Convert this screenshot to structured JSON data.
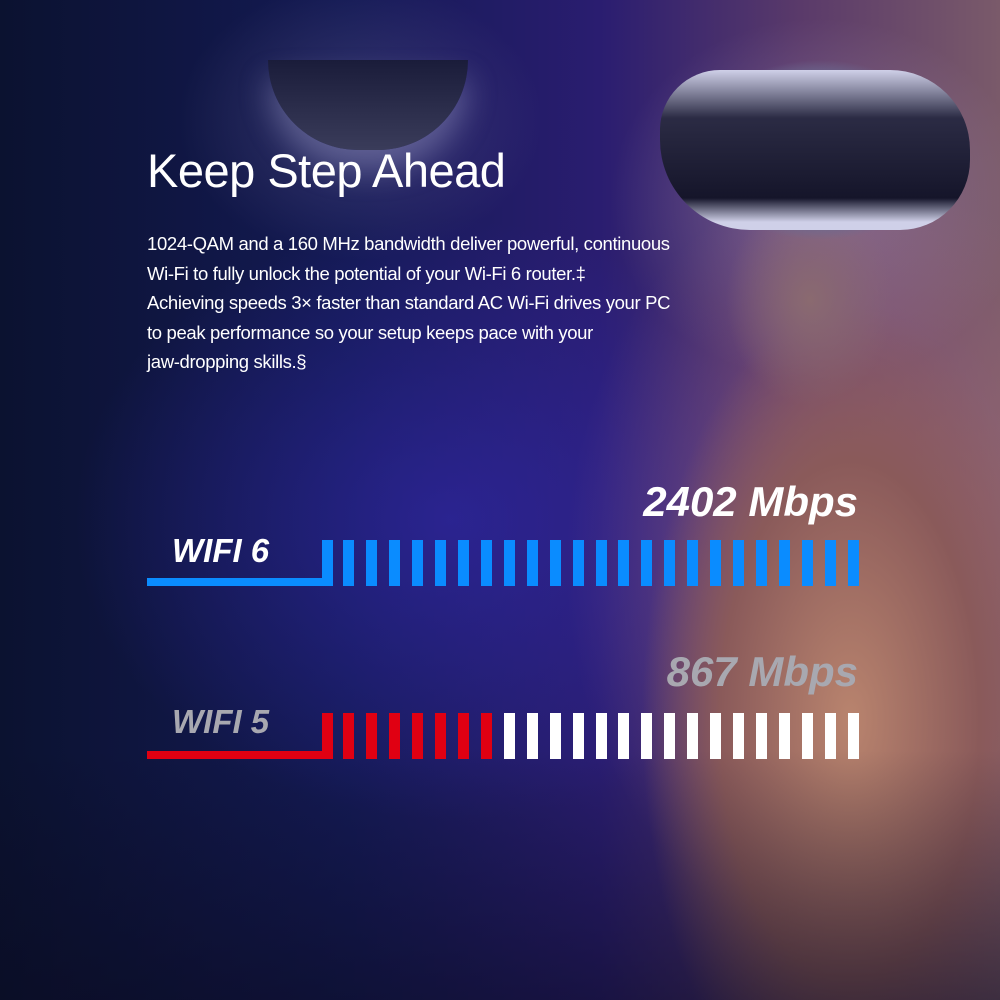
{
  "headline": "Keep Step Ahead",
  "description_lines": [
    "1024-QAM and a 160 MHz bandwidth deliver powerful, continuous",
    "Wi-Fi to fully unlock the potential of your Wi-Fi 6 router.‡",
    "Achieving speeds 3× faster than standard AC Wi-Fi drives your PC",
    "to peak performance so your setup keeps pace with your",
    "jaw-dropping skills.§"
  ],
  "comparison": [
    {
      "label": "WIFI 6",
      "speed": "2402 Mbps",
      "segments_total": 23,
      "segments_filled": 23,
      "fill_color": "#0a8cff",
      "empty_color": "#ffffff",
      "label_color": "#ffffff",
      "speed_color": "#ffffff"
    },
    {
      "label": "WIFI 5",
      "speed": "867 Mbps",
      "segments_total": 23,
      "segments_filled": 7,
      "fill_color": "#e00012",
      "empty_color": "#ffffff",
      "label_color": "#a8a8b0",
      "speed_color": "#a8a8b0"
    }
  ]
}
